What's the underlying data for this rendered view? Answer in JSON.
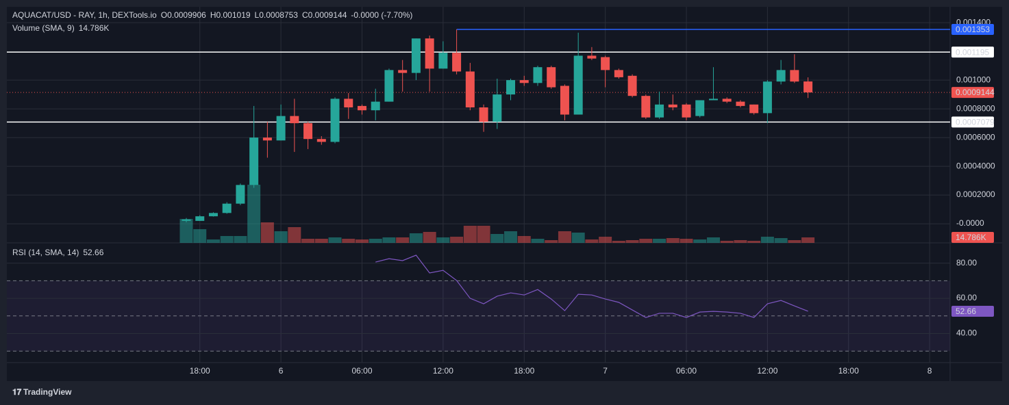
{
  "chart_data": {
    "type": "candlestick",
    "title": "AQUACAT/USD - RAY, 1h, DEXTools.io",
    "ohlc_header": [
      "O",
      "0.0009906",
      "H",
      "0.001019",
      "L",
      "0.0008753",
      "C",
      "0.0009144",
      "-0.0000 (-7.70%)"
    ],
    "up_color": "#26a69a",
    "down_color": "#ef5350",
    "grid": true,
    "categories": [
      null,
      "18:00",
      null,
      null,
      null,
      null,
      null,
      "6",
      null,
      null,
      null,
      null,
      null,
      "06:00",
      null,
      null,
      null,
      null,
      null,
      "12:00",
      null,
      null,
      null,
      null,
      null,
      "18:00",
      null,
      null,
      null,
      null,
      null,
      "7",
      null,
      null,
      null,
      null,
      null,
      "06:00",
      null,
      null,
      null,
      null,
      null,
      "12:00",
      null,
      null,
      null,
      null,
      null,
      "18:00",
      null,
      null,
      null,
      null,
      null,
      "8"
    ],
    "open": [
      2e-05,
      2e-05,
      5.2e-05,
      7.5e-05,
      0.00014,
      0.00027,
      0.0006,
      0.00058,
      0.00075,
      0.0007,
      0.00059,
      0.00057,
      0.00087,
      0.00082,
      0.00079,
      0.00085,
      0.00107,
      0.00105,
      0.00129,
      0.00108,
      0.00119,
      0.00106,
      0.00081,
      0.00071,
      0.0009,
      0.001,
      0.00098,
      0.00109,
      0.00096,
      0.00076,
      0.00117,
      0.00116,
      0.00107,
      0.00103,
      0.00089,
      0.00074,
      0.00083,
      0.00083,
      0.00075,
      0.00086,
      0.00087,
      0.00085,
      0.00083,
      0.00077,
      0.00099,
      0.00107,
      0.0009906,
      null,
      null,
      null,
      null,
      null,
      null,
      null,
      null,
      null
    ],
    "high": [
      4e-05,
      6e-05,
      8e-05,
      0.00015,
      0.00028,
      0.00082,
      0.00071,
      0.00083,
      0.00087,
      0.00071,
      0.00061,
      0.00088,
      0.00091,
      0.00083,
      0.00094,
      0.00108,
      0.00114,
      0.00129,
      0.00131,
      0.00127,
      0.001353,
      0.00112,
      0.00083,
      0.00101,
      0.00101,
      0.00103,
      0.0011,
      0.0011,
      0.00097,
      0.00133,
      0.00123,
      0.00117,
      0.00108,
      0.00104,
      0.0009,
      0.00092,
      0.0009,
      0.00084,
      0.00086,
      0.00109,
      0.00088,
      0.00086,
      0.00083,
      0.001,
      0.00114,
      0.00118,
      0.001019,
      null,
      null,
      null,
      null,
      null,
      null,
      null,
      null,
      null
    ],
    "low": [
      1e-05,
      2e-05,
      5e-05,
      7e-05,
      0.00013,
      0.00025,
      0.00046,
      0.00058,
      0.0005,
      0.00052,
      0.00055,
      0.00056,
      0.00073,
      0.00076,
      0.00072,
      0.00085,
      0.00092,
      0.001,
      0.00092,
      0.00108,
      0.00104,
      0.00079,
      0.00064,
      0.00066,
      0.00086,
      0.00096,
      0.00096,
      0.00094,
      0.00072,
      0.00076,
      0.00114,
      0.00095,
      0.00101,
      0.00088,
      0.00073,
      0.00073,
      0.00079,
      0.00072,
      0.00074,
      0.00086,
      0.00084,
      0.00081,
      0.00076,
      0.0007,
      0.00097,
      0.00098,
      0.0008753,
      null,
      null,
      null,
      null,
      null,
      null,
      null,
      null,
      null
    ],
    "close": [
      3e-05,
      5.2e-05,
      7.5e-05,
      0.00014,
      0.00027,
      0.0006,
      0.00058,
      0.00075,
      0.0007,
      0.00059,
      0.00057,
      0.00087,
      0.00081,
      0.00079,
      0.00085,
      0.00107,
      0.00105,
      0.00129,
      0.00108,
      0.00119,
      0.00106,
      0.00081,
      0.00071,
      0.0009,
      0.001,
      0.00098,
      0.00109,
      0.00095,
      0.00076,
      0.00117,
      0.00115,
      0.00107,
      0.00102,
      0.00089,
      0.00074,
      0.00083,
      0.00081,
      0.00074,
      0.00086,
      0.00087,
      0.00085,
      0.00082,
      0.00077,
      0.00099,
      0.00107,
      0.00099,
      0.0009144,
      null,
      null,
      null,
      null,
      null,
      null,
      null,
      null,
      null
    ],
    "ylim": [
      -0.000133,
      0.00151
    ],
    "yticks": [
      {
        "value": 0.0014,
        "label": "0.001400"
      },
      {
        "value": 0.001,
        "label": "0.001000"
      },
      {
        "value": 0.0008,
        "label": "0.0008000"
      },
      {
        "value": 0.0006,
        "label": "0.0006000"
      },
      {
        "value": 0.0004,
        "label": "0.0004000"
      },
      {
        "value": 0.0002,
        "label": "0.0002000"
      },
      {
        "value": 0,
        "label": "-0.0000"
      }
    ],
    "price_lines": [
      {
        "value": 0.001353,
        "color": "#2962ff"
      },
      {
        "value": 0.001195,
        "color": "#ffffff"
      },
      {
        "value": 0.0007079,
        "color": "#ffffff"
      }
    ],
    "last_price": 0.0009144,
    "volume": {
      "name": "Volume (SMA, 9)",
      "last_label": "14.786K",
      "values": [
        64700,
        37000,
        9200,
        18500,
        18500,
        157000,
        55400,
        31400,
        42500,
        11100,
        11100,
        14800,
        11100,
        9200,
        11100,
        14800,
        14800,
        25900,
        29600,
        14800,
        16600,
        46200,
        46200,
        24000,
        31400,
        18500,
        11100,
        7400,
        31400,
        27700,
        9200,
        16600,
        5500,
        7400,
        11100,
        11100,
        12900,
        11100,
        9200,
        14800,
        5500,
        7400,
        5500,
        16600,
        12900,
        7400,
        14786,
        null,
        null,
        null,
        null,
        null,
        null,
        null,
        null,
        null
      ]
    },
    "rsi": {
      "name": "RSI (14, SMA, 14)",
      "color": "#7e57c2",
      "last_label": "52.66",
      "values": [
        null,
        null,
        null,
        null,
        null,
        null,
        null,
        null,
        null,
        null,
        null,
        null,
        null,
        null,
        80.6,
        82.5,
        81.4,
        84.5,
        74.4,
        75.9,
        70.1,
        60,
        56.9,
        61.2,
        63.1,
        61.9,
        65,
        59.6,
        53,
        62.3,
        61.9,
        59.6,
        57.7,
        53.4,
        49.1,
        51.5,
        51.5,
        49.1,
        52.2,
        52.6,
        52.2,
        51.5,
        49.1,
        56.9,
        58.8,
        55.7,
        52.66,
        null,
        null,
        null,
        null,
        null,
        null,
        null,
        null,
        null
      ],
      "ylim": [
        23.5,
        91.5
      ],
      "yticks": [
        {
          "value": 80,
          "label": "80.00"
        },
        {
          "value": 60,
          "label": "60.00"
        },
        {
          "value": 40,
          "label": "40.00"
        }
      ],
      "bands": [
        70,
        50,
        30
      ]
    },
    "brand": "TradingView"
  }
}
